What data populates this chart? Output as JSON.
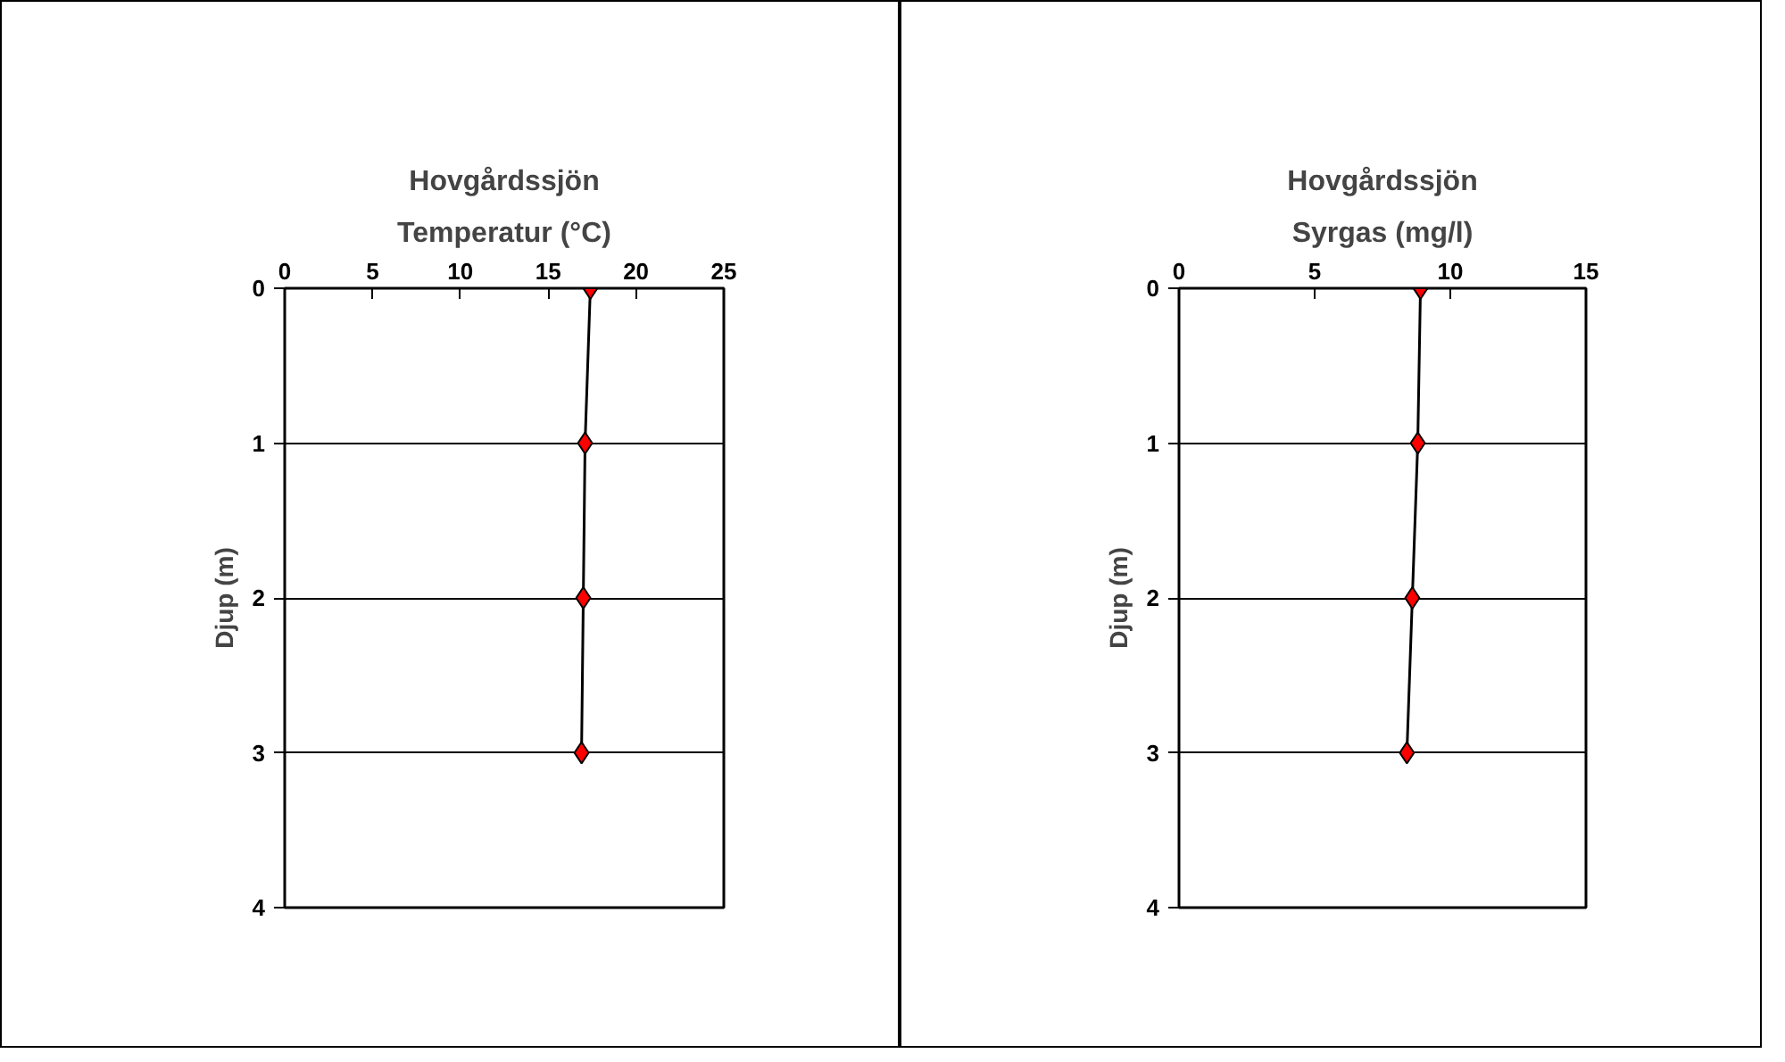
{
  "chart_data": [
    {
      "type": "line",
      "title": "Hovgårdssjön",
      "subtitle": "Temperatur (°C)",
      "ylabel": "Djup (m)",
      "xlim": [
        0,
        25
      ],
      "xticks": [
        0,
        5,
        10,
        15,
        20,
        25
      ],
      "ylim": [
        4,
        0
      ],
      "yticks": [
        0,
        1,
        2,
        3,
        4
      ],
      "grid": "y",
      "marker": "diamond",
      "line_style": "solid",
      "series": [
        {
          "color": "#000000",
          "x": [
            17.4,
            17.1,
            17.0,
            16.9
          ],
          "values": [
            0,
            1,
            2,
            3
          ]
        }
      ]
    },
    {
      "type": "line",
      "title": "Hovgårdssjön",
      "subtitle": "Syrgas (mg/l)",
      "ylabel": "Djup (m)",
      "xlim": [
        0,
        15
      ],
      "xticks": [
        0,
        5,
        10,
        15
      ],
      "ylim": [
        4,
        0
      ],
      "yticks": [
        0,
        1,
        2,
        3,
        4
      ],
      "grid": "y",
      "marker": "diamond",
      "line_style": "solid",
      "series": [
        {
          "color": "#000000",
          "x": [
            8.9,
            8.8,
            8.6,
            8.4
          ],
          "values": [
            0,
            1,
            2,
            3
          ]
        }
      ]
    }
  ]
}
